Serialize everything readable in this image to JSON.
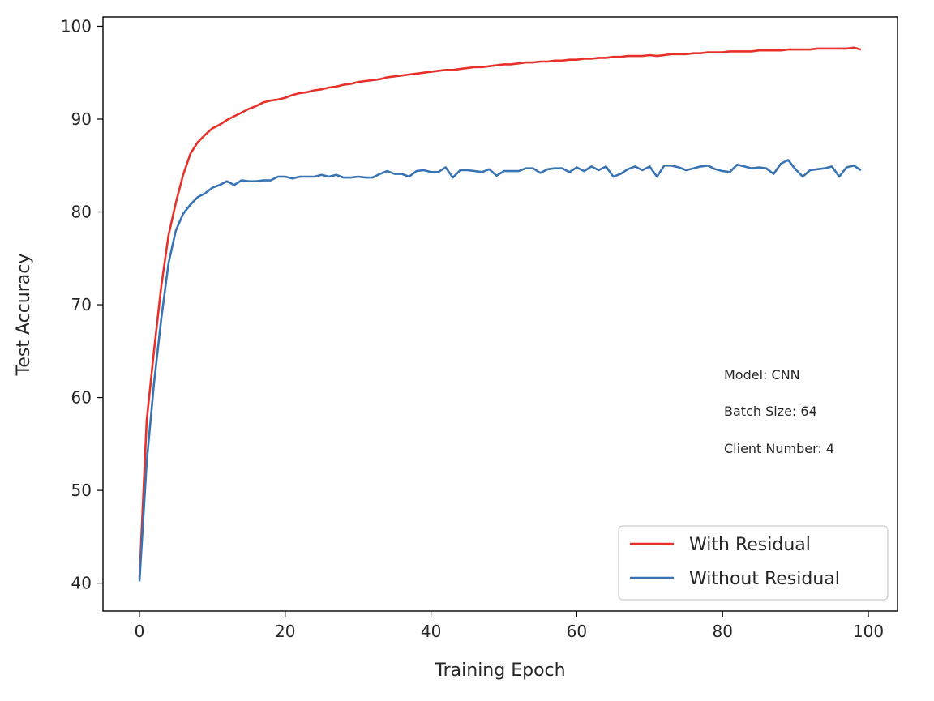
{
  "chart_data": {
    "type": "line",
    "title": "",
    "xlabel": "Training Epoch",
    "ylabel": "Test Accuracy",
    "xlim": [
      -5,
      104
    ],
    "ylim": [
      37,
      101
    ],
    "x_ticks": [
      0,
      20,
      40,
      60,
      80,
      100
    ],
    "y_ticks": [
      40,
      50,
      60,
      70,
      80,
      90,
      100
    ],
    "grid": false,
    "legend_position": "lower-right",
    "annotations": [
      "Model: CNN",
      "Batch Size: 64",
      "Client Number: 4"
    ],
    "series": [
      {
        "name": "With Residual",
        "color": "#e8302a",
        "x": [
          0,
          1,
          2,
          3,
          4,
          5,
          6,
          7,
          8,
          9,
          10,
          11,
          12,
          13,
          14,
          15,
          16,
          17,
          18,
          19,
          20,
          21,
          22,
          23,
          24,
          25,
          26,
          27,
          28,
          29,
          30,
          31,
          32,
          33,
          34,
          35,
          36,
          37,
          38,
          39,
          40,
          41,
          42,
          43,
          44,
          45,
          46,
          47,
          48,
          49,
          50,
          51,
          52,
          53,
          54,
          55,
          56,
          57,
          58,
          59,
          60,
          61,
          62,
          63,
          64,
          65,
          66,
          67,
          68,
          69,
          70,
          71,
          72,
          73,
          74,
          75,
          76,
          77,
          78,
          79,
          80,
          81,
          82,
          83,
          84,
          85,
          86,
          87,
          88,
          89,
          90,
          91,
          92,
          93,
          94,
          95,
          96,
          97,
          98,
          99
        ],
        "values": [
          40.5,
          57.5,
          65.0,
          72.0,
          77.5,
          81.0,
          84.0,
          86.3,
          87.5,
          88.3,
          89.0,
          89.4,
          89.9,
          90.3,
          90.7,
          91.1,
          91.4,
          91.8,
          92.0,
          92.1,
          92.3,
          92.6,
          92.8,
          92.9,
          93.1,
          93.2,
          93.4,
          93.5,
          93.7,
          93.8,
          94.0,
          94.1,
          94.2,
          94.3,
          94.5,
          94.6,
          94.7,
          94.8,
          94.9,
          95.0,
          95.1,
          95.2,
          95.3,
          95.3,
          95.4,
          95.5,
          95.6,
          95.6,
          95.7,
          95.8,
          95.9,
          95.9,
          96.0,
          96.1,
          96.1,
          96.2,
          96.2,
          96.3,
          96.3,
          96.4,
          96.4,
          96.5,
          96.5,
          96.6,
          96.6,
          96.7,
          96.7,
          96.8,
          96.8,
          96.8,
          96.9,
          96.8,
          96.9,
          97.0,
          97.0,
          97.0,
          97.1,
          97.1,
          97.2,
          97.2,
          97.2,
          97.3,
          97.3,
          97.3,
          97.3,
          97.4,
          97.4,
          97.4,
          97.4,
          97.5,
          97.5,
          97.5,
          97.5,
          97.6,
          97.6,
          97.6,
          97.6,
          97.6,
          97.7,
          97.5
        ]
      },
      {
        "name": "Without Residual",
        "color": "#3874b4",
        "x": [
          0,
          1,
          2,
          3,
          4,
          5,
          6,
          7,
          8,
          9,
          10,
          11,
          12,
          13,
          14,
          15,
          16,
          17,
          18,
          19,
          20,
          21,
          22,
          23,
          24,
          25,
          26,
          27,
          28,
          29,
          30,
          31,
          32,
          33,
          34,
          35,
          36,
          37,
          38,
          39,
          40,
          41,
          42,
          43,
          44,
          45,
          46,
          47,
          48,
          49,
          50,
          51,
          52,
          53,
          54,
          55,
          56,
          57,
          58,
          59,
          60,
          61,
          62,
          63,
          64,
          65,
          66,
          67,
          68,
          69,
          70,
          71,
          72,
          73,
          74,
          75,
          76,
          77,
          78,
          79,
          80,
          81,
          82,
          83,
          84,
          85,
          86,
          87,
          88,
          89,
          90,
          91,
          92,
          93,
          94,
          95,
          96,
          97,
          98,
          99
        ],
        "values": [
          40.2,
          53.0,
          61.5,
          68.5,
          74.5,
          78.0,
          79.8,
          80.8,
          81.6,
          82.0,
          82.6,
          82.9,
          83.3,
          82.9,
          83.4,
          83.3,
          83.3,
          83.4,
          83.4,
          83.8,
          83.8,
          83.6,
          83.8,
          83.8,
          83.8,
          84.0,
          83.8,
          84.0,
          83.7,
          83.7,
          83.8,
          83.7,
          83.7,
          84.1,
          84.4,
          84.1,
          84.1,
          83.8,
          84.4,
          84.5,
          84.3,
          84.3,
          84.8,
          83.7,
          84.5,
          84.5,
          84.4,
          84.3,
          84.6,
          83.9,
          84.4,
          84.4,
          84.4,
          84.7,
          84.7,
          84.2,
          84.6,
          84.7,
          84.7,
          84.3,
          84.8,
          84.4,
          84.9,
          84.5,
          84.9,
          83.8,
          84.1,
          84.6,
          84.9,
          84.5,
          84.9,
          83.8,
          85.0,
          85.0,
          84.8,
          84.5,
          84.7,
          84.9,
          85.0,
          84.6,
          84.4,
          84.3,
          85.1,
          84.9,
          84.7,
          84.8,
          84.7,
          84.1,
          85.2,
          85.6,
          84.6,
          83.8,
          84.5,
          84.6,
          84.7,
          84.9,
          83.8,
          84.8,
          85.0,
          84.5
        ]
      }
    ]
  }
}
